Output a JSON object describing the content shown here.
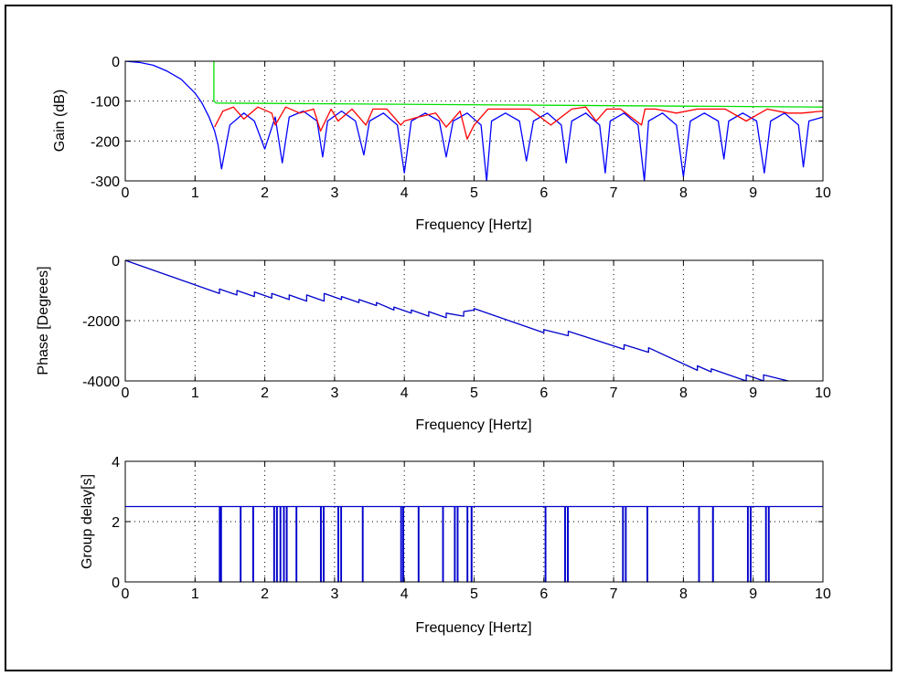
{
  "chart_data": [
    {
      "type": "line",
      "xlabel": "Frequency [Hertz]",
      "ylabel": "Gain (dB)",
      "xlim": [
        0,
        10
      ],
      "ylim": [
        -300,
        0
      ],
      "xticks": [
        0,
        1,
        2,
        3,
        4,
        5,
        6,
        7,
        8,
        9,
        10
      ],
      "yticks": [
        0,
        -100,
        -200,
        -300
      ],
      "grid": true,
      "series": [
        {
          "color": "#0000ff",
          "x": [
            0,
            0.2,
            0.4,
            0.6,
            0.8,
            1.0,
            1.1,
            1.2,
            1.28,
            1.33,
            1.38,
            1.5,
            1.7,
            1.85,
            2.0,
            2.15,
            2.25,
            2.35,
            2.55,
            2.75,
            2.83,
            2.9,
            3.1,
            3.3,
            3.42,
            3.5,
            3.7,
            3.9,
            4.0,
            4.1,
            4.3,
            4.5,
            4.6,
            4.7,
            4.9,
            5.1,
            5.18,
            5.25,
            5.45,
            5.65,
            5.75,
            5.85,
            6.05,
            6.25,
            6.32,
            6.4,
            6.6,
            6.8,
            6.88,
            6.95,
            7.15,
            7.35,
            7.44,
            7.5,
            7.7,
            7.9,
            8.0,
            8.1,
            8.3,
            8.5,
            8.58,
            8.65,
            8.85,
            9.05,
            9.16,
            9.25,
            9.45,
            9.65,
            9.72,
            9.8,
            10.0
          ],
          "y": [
            0,
            -3,
            -10,
            -25,
            -45,
            -80,
            -105,
            -140,
            -175,
            -210,
            -270,
            -160,
            -130,
            -150,
            -220,
            -140,
            -255,
            -140,
            -125,
            -150,
            -240,
            -150,
            -125,
            -150,
            -235,
            -150,
            -130,
            -160,
            -280,
            -150,
            -130,
            -150,
            -240,
            -150,
            -130,
            -160,
            -300,
            -150,
            -130,
            -150,
            -250,
            -150,
            -130,
            -160,
            -255,
            -150,
            -130,
            -160,
            -280,
            -150,
            -130,
            -160,
            -300,
            -150,
            -130,
            -160,
            -290,
            -150,
            -130,
            -150,
            -245,
            -150,
            -130,
            -150,
            -280,
            -150,
            -130,
            -160,
            -265,
            -150,
            -140
          ]
        },
        {
          "color": "#ff0000",
          "x": [
            1.28,
            1.4,
            1.55,
            1.7,
            1.9,
            2.1,
            2.15,
            2.3,
            2.5,
            2.7,
            2.8,
            2.95,
            3.05,
            3.25,
            3.45,
            3.55,
            3.75,
            3.95,
            4.0,
            4.2,
            4.45,
            4.6,
            4.8,
            4.9,
            5.0,
            5.2,
            5.5,
            5.8,
            6.1,
            6.4,
            6.6,
            6.75,
            6.9,
            7.1,
            7.4,
            7.45,
            7.6,
            7.9,
            8.2,
            8.6,
            8.9,
            9.2,
            9.5,
            9.7,
            10.0
          ],
          "y": [
            -165,
            -125,
            -115,
            -145,
            -115,
            -130,
            -160,
            -115,
            -130,
            -120,
            -175,
            -120,
            -150,
            -120,
            -160,
            -120,
            -120,
            -160,
            -150,
            -140,
            -130,
            -165,
            -125,
            -195,
            -160,
            -120,
            -120,
            -120,
            -160,
            -120,
            -115,
            -150,
            -120,
            -120,
            -160,
            -120,
            -120,
            -130,
            -120,
            -120,
            -150,
            -120,
            -130,
            -130,
            -125
          ]
        },
        {
          "color": "#00e000",
          "x": [
            1.27,
            1.27,
            1.3,
            10.0
          ],
          "y": [
            0,
            -100,
            -105,
            -115
          ]
        }
      ]
    },
    {
      "type": "line",
      "xlabel": "Frequency [Hertz]",
      "ylabel": "Phase [Degrees]",
      "xlim": [
        0,
        10
      ],
      "ylim": [
        -4000,
        0
      ],
      "xticks": [
        0,
        1,
        2,
        3,
        4,
        5,
        6,
        7,
        8,
        9,
        10
      ],
      "yticks": [
        0,
        -2000,
        -4000
      ],
      "grid": true,
      "series": [
        {
          "color": "#0000cc",
          "x": [
            0,
            1.35,
            1.35,
            1.6,
            1.6,
            1.85,
            1.85,
            2.1,
            2.1,
            2.35,
            2.35,
            2.6,
            2.6,
            2.85,
            2.85,
            3.1,
            3.1,
            3.35,
            3.35,
            3.6,
            3.6,
            3.85,
            3.85,
            4.1,
            4.1,
            4.35,
            4.35,
            4.6,
            4.6,
            4.85,
            4.85,
            5.0,
            5.0,
            6.0,
            6.0,
            6.35,
            6.35,
            7.15,
            7.15,
            7.5,
            7.5,
            8.2,
            8.2,
            8.4,
            8.4,
            8.9,
            8.9,
            9.15,
            9.15,
            9.5
          ],
          "y": [
            0,
            -1100,
            -950,
            -1150,
            -1000,
            -1200,
            -1050,
            -1250,
            -1100,
            -1300,
            -1150,
            -1350,
            -1150,
            -1350,
            -1100,
            -1300,
            -1200,
            -1400,
            -1300,
            -1500,
            -1400,
            -1650,
            -1550,
            -1750,
            -1650,
            -1850,
            -1700,
            -1900,
            -1750,
            -1850,
            -1700,
            -1650,
            -1600,
            -2400,
            -2300,
            -2500,
            -2350,
            -2950,
            -2800,
            -3050,
            -2900,
            -3650,
            -3500,
            -3700,
            -3600,
            -4000,
            -3800,
            -4000,
            -3800,
            -4000
          ]
        }
      ]
    },
    {
      "type": "line",
      "xlabel": "Frequency [Hertz]",
      "ylabel": "Group delay[s]",
      "xlim": [
        0,
        10
      ],
      "ylim": [
        0,
        4
      ],
      "xticks": [
        0,
        1,
        2,
        3,
        4,
        5,
        6,
        7,
        8,
        9,
        10
      ],
      "yticks": [
        0,
        2,
        4
      ],
      "grid": true,
      "series": [
        {
          "color": "#0000cc",
          "baseline": 2.5,
          "drops_to": 0,
          "drop_x": [
            1.35,
            1.37,
            1.65,
            1.83,
            2.13,
            2.17,
            2.22,
            2.27,
            2.31,
            2.45,
            2.8,
            2.84,
            3.05,
            3.09,
            3.4,
            3.95,
            3.98,
            4.2,
            4.55,
            4.72,
            4.76,
            4.9,
            4.96,
            6.02,
            6.3,
            6.34,
            7.13,
            7.17,
            7.48,
            8.22,
            8.42,
            8.92,
            8.96,
            9.18,
            9.22
          ]
        }
      ]
    }
  ]
}
